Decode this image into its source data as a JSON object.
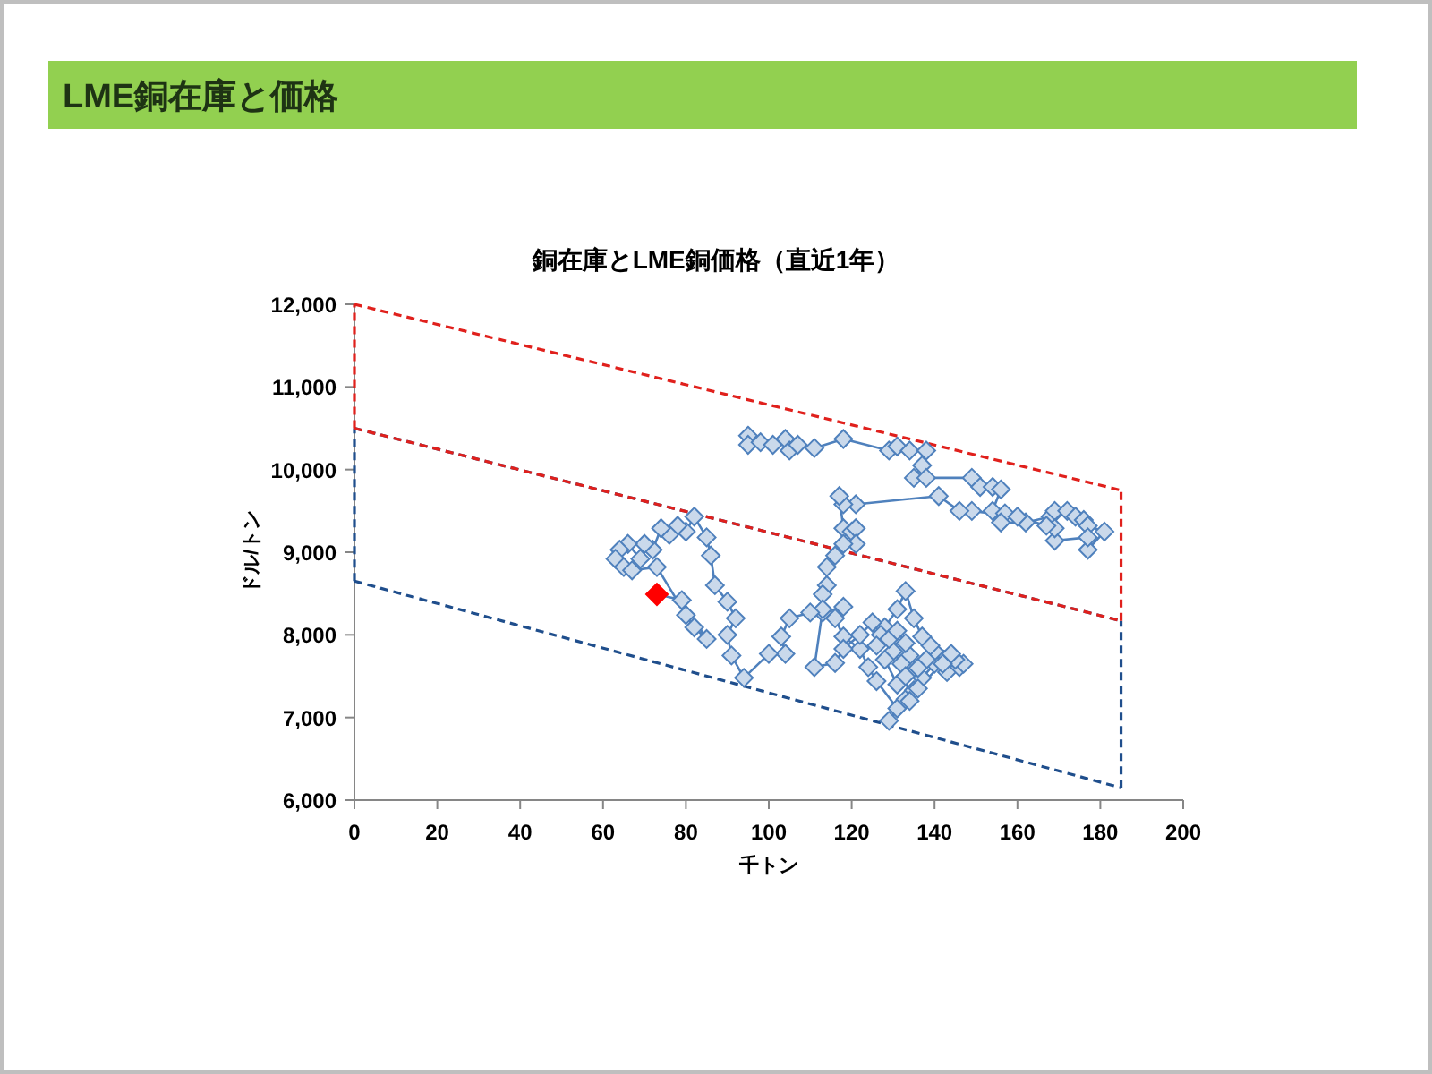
{
  "chart_data": {
    "type": "line",
    "title": "LME銅在庫と価格",
    "subtitle": "銅在庫とLME銅価格（直近1年）",
    "xlabel": "千トン",
    "ylabel": "ドル/トン",
    "xlim": [
      0,
      200
    ],
    "xticks": [
      0,
      20,
      40,
      60,
      80,
      100,
      120,
      140,
      160,
      180,
      200
    ],
    "ylim": [
      6000,
      12000
    ],
    "yticks": [
      {
        "value": 6000,
        "label": "6,000"
      },
      {
        "value": 7000,
        "label": "7,000"
      },
      {
        "value": 8000,
        "label": "8,000"
      },
      {
        "value": 9000,
        "label": "9,000"
      },
      {
        "value": 10000,
        "label": "10,000"
      },
      {
        "value": 11000,
        "label": "11,000"
      },
      {
        "value": 12000,
        "label": "12,000"
      }
    ],
    "series": [
      {
        "color": "#1f4e8c",
        "line_style": "dashed",
        "x": [
          0,
          185
        ],
        "values": [
          10500,
          8170
        ]
      },
      {
        "color": "#1f4e8c",
        "line_style": "dashed",
        "x": [
          0,
          185
        ],
        "values": [
          8650,
          6150
        ]
      },
      {
        "color": "#1f4e8c",
        "line_style": "dashed",
        "x": [
          0,
          0
        ],
        "values": [
          8650,
          10500
        ]
      },
      {
        "color": "#1f4e8c",
        "line_style": "dashed",
        "x": [
          185,
          185
        ],
        "values": [
          6150,
          8170
        ]
      },
      {
        "color": "#e0201c",
        "line_style": "dashed",
        "x": [
          0,
          185
        ],
        "values": [
          12000,
          9750
        ]
      },
      {
        "color": "#e0201c",
        "line_style": "dashed",
        "x": [
          0,
          185
        ],
        "values": [
          10500,
          8170
        ]
      },
      {
        "color": "#e0201c",
        "line_style": "dashed",
        "x": [
          0,
          0
        ],
        "values": [
          10500,
          12000
        ]
      },
      {
        "color": "#e0201c",
        "line_style": "dashed",
        "x": [
          185,
          185
        ],
        "values": [
          8170,
          9750
        ]
      },
      {
        "color": "#4f81bd",
        "marker": "diamond",
        "x": [
          95,
          95,
          98,
          101,
          104,
          105,
          107,
          111,
          118,
          129,
          131,
          134,
          138,
          137,
          135,
          138,
          149,
          151,
          154,
          156,
          154,
          157,
          156,
          162,
          168,
          169,
          172,
          174,
          176,
          177,
          181,
          177,
          177,
          169,
          169,
          167,
          160,
          149,
          146,
          141,
          121,
          118,
          117,
          118,
          120,
          121,
          121,
          118,
          116,
          114,
          114,
          113,
          113,
          118,
          116,
          118,
          122,
          124,
          126,
          131,
          129,
          133,
          135,
          137,
          140,
          143,
          146,
          147,
          145,
          142,
          140,
          138,
          136,
          134,
          132,
          130,
          128,
          131,
          133,
          134,
          136,
          144,
          139,
          137,
          135,
          133,
          131,
          128,
          127,
          129,
          131,
          133,
          126,
          125,
          122,
          118,
          116,
          111,
          113,
          110,
          105,
          103,
          104,
          100,
          94,
          91,
          90,
          92,
          90,
          87,
          86,
          85,
          82,
          80,
          78,
          76,
          74,
          72,
          70,
          69,
          66,
          64,
          63,
          65,
          67,
          73,
          80,
          82,
          85,
          79,
          73
        ],
        "values": [
          10410,
          10300,
          10330,
          10300,
          10370,
          10230,
          10300,
          10260,
          10370,
          10230,
          10280,
          10230,
          10230,
          10050,
          9900,
          9900,
          9900,
          9790,
          9790,
          9760,
          9500,
          9470,
          9360,
          9360,
          9430,
          9500,
          9500,
          9430,
          9390,
          9320,
          9250,
          9030,
          9180,
          9140,
          9290,
          9320,
          9430,
          9500,
          9500,
          9680,
          9580,
          9580,
          9680,
          9290,
          9250,
          9290,
          9100,
          9100,
          8960,
          8820,
          8600,
          8490,
          8270,
          8340,
          8200,
          7980,
          7830,
          7610,
          7440,
          7110,
          6960,
          7220,
          7330,
          7480,
          7650,
          7550,
          7610,
          7650,
          7700,
          7650,
          7800,
          7700,
          7600,
          7750,
          7650,
          7800,
          7700,
          7400,
          7500,
          7200,
          7350,
          7770,
          7870,
          7980,
          8200,
          8530,
          8310,
          8090,
          8000,
          7950,
          8050,
          7900,
          7870,
          8150,
          8000,
          7830,
          7660,
          7610,
          8310,
          8270,
          8200,
          7980,
          7770,
          7770,
          7480,
          7750,
          8000,
          8200,
          8400,
          8600,
          8960,
          9180,
          9430,
          9250,
          9320,
          9210,
          9290,
          9030,
          9100,
          8920,
          9100,
          9030,
          8920,
          8820,
          8780,
          8820,
          8240,
          8090,
          7950,
          8420,
          8490
        ]
      },
      {
        "type": "scatter",
        "color": "#ff0000",
        "marker": "diamond",
        "x": [
          73
        ],
        "values": [
          8490
        ]
      }
    ]
  }
}
